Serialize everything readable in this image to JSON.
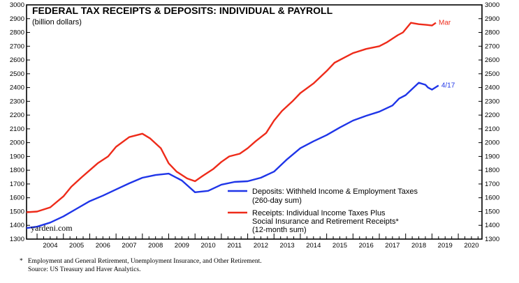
{
  "chart_data": {
    "type": "line",
    "title": "FEDERAL TAX RECEIPTS & DEPOSITS: INDIVIDUAL & PAYROLL",
    "subtitle": "(billion dollars)",
    "ylim": [
      1300,
      3000
    ],
    "yticks": [
      1300,
      1400,
      1500,
      1600,
      1700,
      1800,
      1900,
      2000,
      2100,
      2200,
      2300,
      2400,
      2500,
      2600,
      2700,
      2800,
      2900,
      3000
    ],
    "xlim": [
      2003.6,
      2020.9
    ],
    "years": [
      "2004",
      "2005",
      "2006",
      "2007",
      "2008",
      "2009",
      "2010",
      "2011",
      "2012",
      "2013",
      "2014",
      "2015",
      "2016",
      "2017",
      "2018",
      "2019",
      "2020"
    ],
    "grid": false,
    "legend_position": "lower-right",
    "watermark": "yardeni.com",
    "series": [
      {
        "name": "Deposits: Withheld Income & Employment Taxes",
        "name_line2": "(260-day sum)",
        "color": "#1f35e8",
        "end_label": "4/17",
        "x": [
          2003.6,
          2004.0,
          2004.5,
          2005.0,
          2005.5,
          2006.0,
          2006.5,
          2007.0,
          2007.5,
          2008.0,
          2008.5,
          2009.0,
          2009.5,
          2010.0,
          2010.5,
          2011.0,
          2011.5,
          2012.0,
          2012.5,
          2013.0,
          2013.5,
          2014.0,
          2014.5,
          2015.0,
          2015.5,
          2016.0,
          2016.5,
          2017.0,
          2017.5,
          2017.75,
          2018.0,
          2018.5,
          2018.75,
          2018.85,
          2019.0,
          2019.25
        ],
        "y": [
          1380,
          1390,
          1420,
          1465,
          1520,
          1575,
          1615,
          1660,
          1705,
          1745,
          1765,
          1775,
          1725,
          1640,
          1650,
          1695,
          1715,
          1720,
          1745,
          1790,
          1880,
          1960,
          2010,
          2055,
          2110,
          2160,
          2195,
          2225,
          2270,
          2320,
          2345,
          2435,
          2420,
          2400,
          2385,
          2415
        ]
      },
      {
        "name": "Receipts: Individual Income Taxes Plus",
        "name_line2": "Social Insurance and Retirement Receipts*",
        "name_line3": "(12-month sum)",
        "color": "#ee2b1a",
        "end_label": "Mar",
        "x": [
          2003.6,
          2004.0,
          2004.5,
          2005.0,
          2005.3,
          2005.7,
          2006.0,
          2006.3,
          2006.7,
          2007.0,
          2007.5,
          2008.0,
          2008.3,
          2008.7,
          2009.0,
          2009.3,
          2009.7,
          2010.0,
          2010.3,
          2010.7,
          2011.0,
          2011.3,
          2011.7,
          2012.0,
          2012.3,
          2012.7,
          2013.0,
          2013.3,
          2013.7,
          2014.0,
          2014.5,
          2015.0,
          2015.3,
          2015.7,
          2016.0,
          2016.5,
          2017.0,
          2017.3,
          2017.7,
          2017.9,
          2018.2,
          2018.5,
          2018.8,
          2019.0,
          2019.15
        ],
        "y": [
          1495,
          1500,
          1530,
          1610,
          1680,
          1750,
          1800,
          1850,
          1900,
          1970,
          2040,
          2065,
          2030,
          1960,
          1850,
          1790,
          1740,
          1720,
          1760,
          1810,
          1860,
          1900,
          1920,
          1960,
          2010,
          2070,
          2160,
          2230,
          2300,
          2360,
          2430,
          2520,
          2580,
          2620,
          2650,
          2680,
          2700,
          2730,
          2780,
          2800,
          2870,
          2860,
          2855,
          2850,
          2870
        ]
      }
    ]
  },
  "footnote": {
    "line1": "Employment and General Retirement, Unemployment Insurance, and Other Retirement.",
    "line2": "Source: US Treasury and Haver Analytics.",
    "marker": "*"
  }
}
